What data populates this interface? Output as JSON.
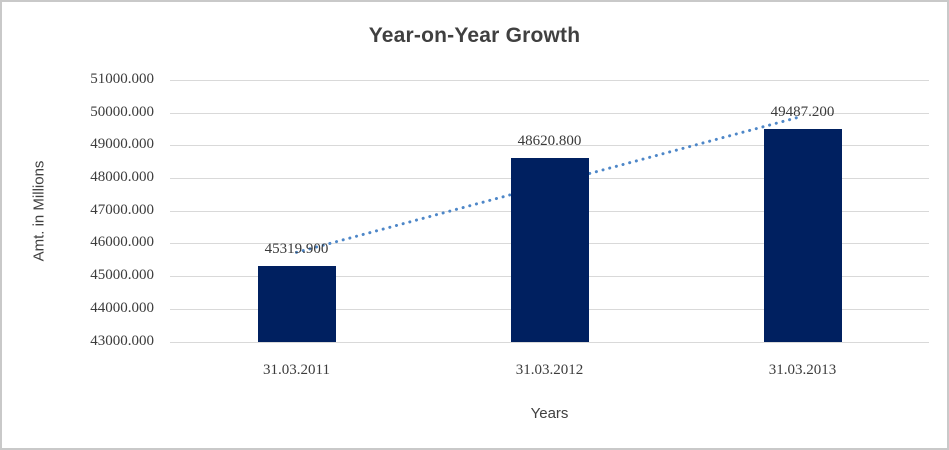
{
  "chart_data": {
    "type": "bar",
    "title": "Year-on-Year Growth",
    "xlabel": "Years",
    "ylabel": "Amt. in Millions",
    "categories": [
      "31.03.2011",
      "31.03.2012",
      "31.03.2013"
    ],
    "values": [
      45319.9,
      48620.8,
      49487.2
    ],
    "data_labels": [
      "45319.900",
      "48620.800",
      "49487.200"
    ],
    "ylim": [
      43000,
      51000
    ],
    "ytick_step": 1000,
    "ytick_labels": [
      "43000.000",
      "44000.000",
      "45000.000",
      "46000.000",
      "47000.000",
      "48000.000",
      "49000.000",
      "50000.000",
      "51000.000"
    ],
    "grid": true,
    "legend": "none",
    "trendline": {
      "type": "linear",
      "style": "dotted"
    },
    "colors": {
      "bar": "#002060",
      "trendline": "#4e87c8",
      "gridline": "#d9d9d9",
      "title_text": "#404040",
      "axis_text": "#3c3c3c"
    }
  }
}
